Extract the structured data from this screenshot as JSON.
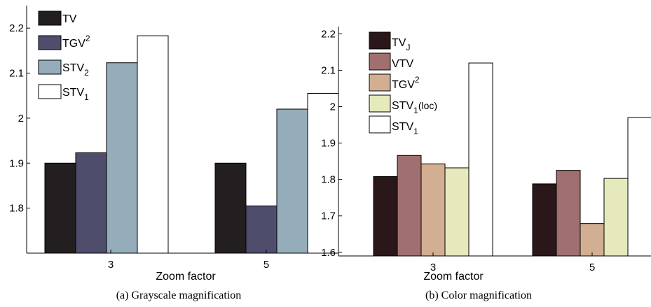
{
  "chart_data": [
    {
      "type": "bar",
      "xlabel": "Zoom factor",
      "caption": "(a) Grayscale magnification",
      "categories": [
        "3",
        "5"
      ],
      "ylim": [
        1.7,
        2.25
      ],
      "yticks": [
        1.8,
        1.9,
        2.0,
        2.1,
        2.2
      ],
      "ytick_labels": [
        "1.8",
        "1.9",
        "2",
        "2.1",
        "2.2"
      ],
      "legend_position": "top-left",
      "series": [
        {
          "name": "TV",
          "sub": "",
          "sup": "",
          "color": "#231f20",
          "values": [
            1.9,
            1.9
          ]
        },
        {
          "name": "TGV",
          "sub": "",
          "sup": "2",
          "color": "#4f4d6c",
          "values": [
            1.923,
            1.805
          ]
        },
        {
          "name": "STV",
          "sub": "2",
          "sup": "",
          "color": "#95adbb",
          "values": [
            2.123,
            2.02
          ]
        },
        {
          "name": "STV",
          "sub": "1",
          "sup": "",
          "color": "#ffffff",
          "values": [
            2.183,
            2.055
          ]
        }
      ]
    },
    {
      "type": "bar",
      "xlabel": "Zoom factor",
      "caption": "(b) Color magnification",
      "categories": [
        "3",
        "5"
      ],
      "ylim": [
        1.59,
        2.22
      ],
      "yticks": [
        1.6,
        1.7,
        1.8,
        1.9,
        2.0,
        2.1,
        2.2
      ],
      "ytick_labels": [
        "1.6",
        "1.7",
        "1.8",
        "1.9",
        "2",
        "2.1",
        "2.2"
      ],
      "legend_position": "top-left",
      "series": [
        {
          "name": "TV",
          "sub": "J",
          "sup": "",
          "tail": "",
          "color": "#2a1719",
          "values": [
            1.808,
            1.788
          ]
        },
        {
          "name": "VTV",
          "sub": "",
          "sup": "",
          "tail": "",
          "color": "#a07070",
          "values": [
            1.866,
            1.825
          ]
        },
        {
          "name": "TGV",
          "sub": "",
          "sup": "2",
          "tail": "",
          "color": "#d2ae92",
          "values": [
            1.843,
            1.679
          ]
        },
        {
          "name": "STV",
          "sub": "1",
          "sup": "",
          "tail": "(loc)",
          "color": "#e6e9bc",
          "values": [
            1.832,
            1.803
          ]
        },
        {
          "name": "STV",
          "sub": "1",
          "sup": "",
          "tail": "",
          "color": "#ffffff",
          "values": [
            2.12,
            1.97
          ]
        }
      ]
    }
  ]
}
